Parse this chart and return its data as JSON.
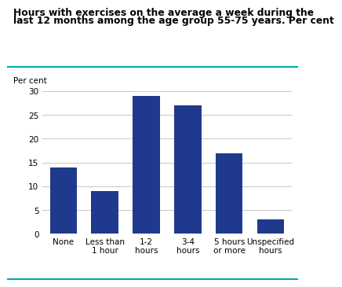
{
  "title_line1": "Hours with exercises on the average a week during the",
  "title_line2": "last 12 months among the age group 55-75 years. Per cent",
  "ylabel": "Per cent",
  "categories": [
    "None",
    "Less than\n1 hour",
    "1-2\nhours",
    "3-4\nhours",
    "5 hours\nor more",
    "Unspecified\nhours"
  ],
  "values": [
    14.0,
    9.0,
    29.0,
    27.0,
    17.0,
    3.0
  ],
  "bar_color": "#1F3A8C",
  "ylim": [
    0,
    30
  ],
  "yticks": [
    0,
    5,
    10,
    15,
    20,
    25,
    30
  ],
  "title_fontsize": 8.8,
  "ylabel_fontsize": 7.5,
  "tick_fontsize": 7.5,
  "title_color": "#000000",
  "grid_color": "#c8c8c8",
  "teal_color": "#00AAAA"
}
